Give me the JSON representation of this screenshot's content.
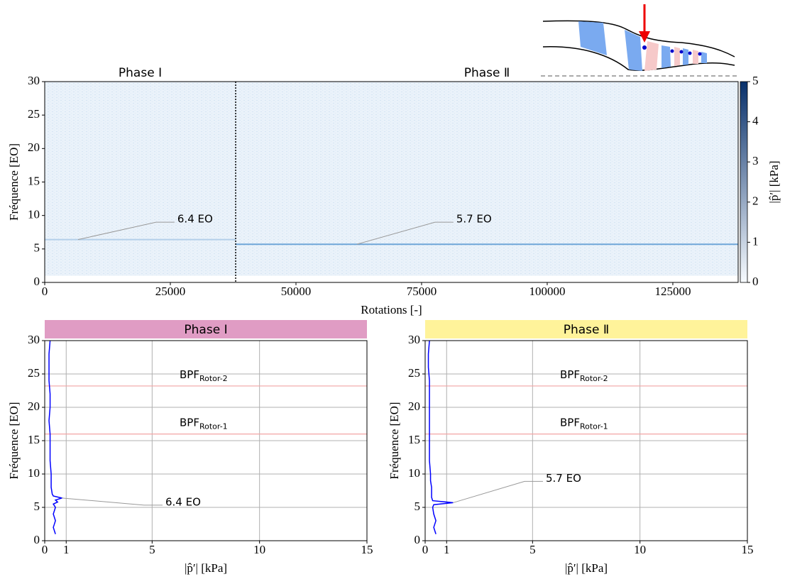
{
  "chart_data": [
    {
      "type": "heatmap",
      "xlabel": "Rotations [-]",
      "ylabel": "Fréquence [EO]",
      "xlim": [
        0,
        138000
      ],
      "xticks": [
        0,
        25000,
        50000,
        75000,
        100000,
        125000
      ],
      "ylim": [
        0,
        30
      ],
      "yticks": [
        0,
        5,
        10,
        15,
        20,
        25,
        30
      ],
      "data_ylim": [
        1,
        30
      ],
      "phase_split": 38000,
      "phases": [
        "Phase Ⅰ",
        "Phase Ⅱ"
      ],
      "ridges": [
        {
          "label": "6.4 EO",
          "y": 6.4,
          "color": "#b3cfe9"
        },
        {
          "label": "5.7 EO",
          "y": 5.7,
          "color": "#6fa6d8"
        }
      ],
      "colorbar": {
        "label": "|p̂′| [kPa]",
        "lim": [
          0,
          5
        ],
        "ticks": [
          0,
          1,
          2,
          3,
          4,
          5
        ],
        "colors": [
          "#f7fbff",
          "#08306b"
        ]
      }
    },
    {
      "type": "line",
      "title": "Phase Ⅰ",
      "title_color": "#e09cc4",
      "xlabel": "|p̂′| [kPa]",
      "ylabel": "Fréquence [EO]",
      "xlim": [
        0,
        15
      ],
      "xticks": [
        0,
        1,
        5,
        10,
        15
      ],
      "ylim": [
        0,
        30
      ],
      "yticks": [
        0,
        5,
        10,
        15,
        20,
        25,
        30
      ],
      "grid": true,
      "y": [
        1,
        2,
        3,
        4,
        5,
        5.5,
        5.8,
        6.1,
        6.4,
        6.7,
        7,
        8,
        9,
        10,
        12,
        14,
        16,
        18,
        20,
        22,
        24,
        26,
        28,
        30
      ],
      "series": [
        {
          "color": "#0000ff",
          "values": [
            0.5,
            0.4,
            0.5,
            0.4,
            0.5,
            0.4,
            0.6,
            0.5,
            0.8,
            0.4,
            0.35,
            0.3,
            0.3,
            0.3,
            0.25,
            0.25,
            0.25,
            0.2,
            0.25,
            0.25,
            0.2,
            0.2,
            0.2,
            0.25
          ]
        }
      ],
      "hlines": [
        {
          "value": 16,
          "label": "BPF",
          "sub": "Rotor-1",
          "color": "#f2a5a5"
        },
        {
          "value": 23.2,
          "label": "BPF",
          "sub": "Rotor-2",
          "color": "#f2a5a5"
        }
      ],
      "annotation": "6.4 EO"
    },
    {
      "type": "line",
      "title": "Phase Ⅱ",
      "title_color": "#fff39a",
      "xlabel": "|p̂′| [kPa]",
      "ylabel": "Fréquence [EO]",
      "xlim": [
        0,
        15
      ],
      "xticks": [
        0,
        1,
        5,
        10,
        15
      ],
      "ylim": [
        0,
        30
      ],
      "yticks": [
        0,
        5,
        10,
        15,
        20,
        25,
        30
      ],
      "grid": true,
      "y": [
        1,
        2,
        3,
        4,
        5,
        5.4,
        5.7,
        6,
        6.5,
        7,
        8,
        9,
        10,
        12,
        14,
        16,
        18,
        20,
        22,
        24,
        26,
        28,
        30
      ],
      "series": [
        {
          "color": "#0000ff",
          "values": [
            0.5,
            0.4,
            0.5,
            0.4,
            0.35,
            0.4,
            1.3,
            0.35,
            0.3,
            0.3,
            0.3,
            0.25,
            0.25,
            0.2,
            0.2,
            0.2,
            0.2,
            0.2,
            0.2,
            0.2,
            0.15,
            0.15,
            0.2
          ]
        }
      ],
      "hlines": [
        {
          "value": 16,
          "label": "BPF",
          "sub": "Rotor-1",
          "color": "#f2a5a5"
        },
        {
          "value": 23.2,
          "label": "BPF",
          "sub": "Rotor-2",
          "color": "#f2a5a5"
        }
      ],
      "annotation": "5.7 EO"
    }
  ]
}
